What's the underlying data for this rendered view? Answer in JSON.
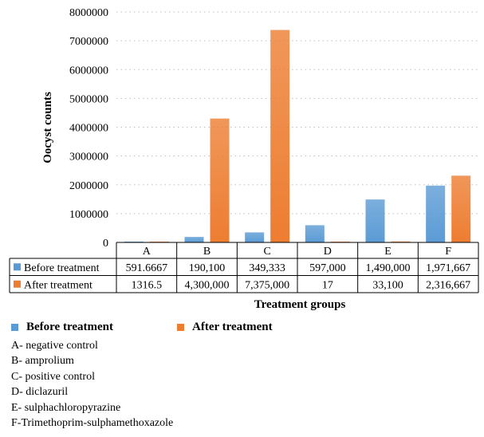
{
  "chart_data": {
    "type": "bar",
    "categories": [
      "A",
      "B",
      "C",
      "D",
      "E",
      "F"
    ],
    "series": [
      {
        "name": "Before treatment",
        "values": [
          591.6667,
          190100,
          349333,
          597000,
          1490000,
          1971667
        ],
        "labels": [
          "591.6667",
          "190,100",
          "349,333",
          "597,000",
          "1,490,000",
          "1,971,667"
        ],
        "color": "#5b9bd5"
      },
      {
        "name": "After treatment",
        "values": [
          1316.5,
          4300000,
          7375000,
          17,
          33100,
          2316667
        ],
        "labels": [
          "1316.5",
          "4,300,000",
          "7,375,000",
          "17",
          "33,100",
          "2,316,667"
        ],
        "color": "#ed7d31"
      }
    ],
    "ylabel": "Oocyst counts",
    "xlabel": "Treatment groups",
    "ylim": [
      0,
      8000000
    ],
    "yticks": [
      "0",
      "1000000",
      "2000000",
      "3000000",
      "4000000",
      "5000000",
      "6000000",
      "7000000",
      "8000000"
    ],
    "grid": true,
    "legend": "bottom-left",
    "data_table": true
  },
  "legend": {
    "before": "Before treatment",
    "after": "After treatment"
  },
  "notes": [
    "A- negative control",
    "B- amprolium",
    "C- positive control",
    "D- diclazuril",
    "E- sulphachloropyrazine",
    "F-Trimethoprim-sulphamethoxazole"
  ]
}
